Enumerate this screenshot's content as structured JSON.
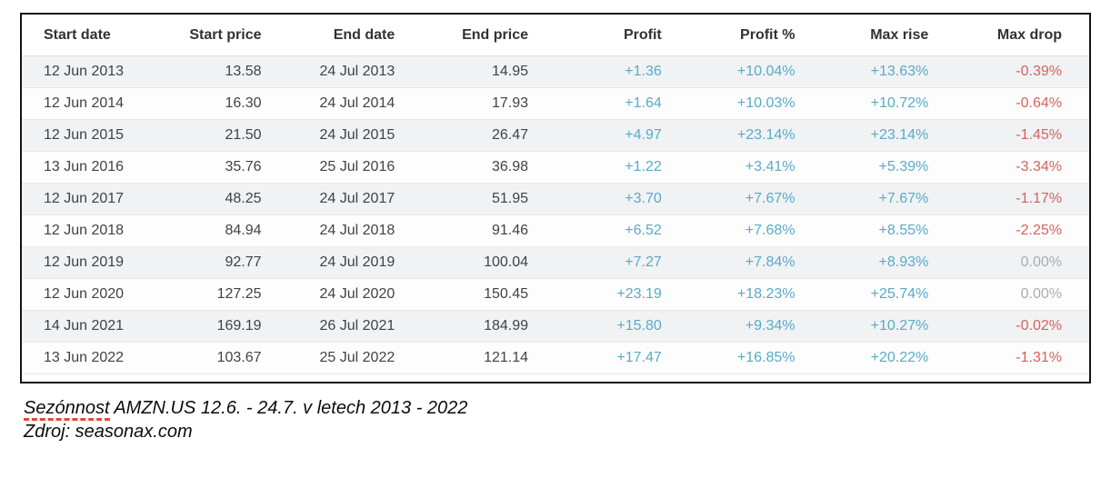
{
  "colors": {
    "positive": "#5aabc4",
    "negative": "#d4635f",
    "neutral": "#a9adb2"
  },
  "chart_data": {
    "type": "table",
    "title": "Sezónnost AMZN.US 12.6. - 24.7. v letech 2013 - 2022",
    "source": "Zdroj: seasonax.com",
    "columns": [
      "Start date",
      "Start price",
      "End date",
      "End price",
      "Profit",
      "Profit %",
      "Max rise",
      "Max drop"
    ],
    "column_keys": [
      "start-date",
      "start-price",
      "end-date",
      "end-price",
      "profit",
      "profit-pct",
      "max-rise",
      "max-drop"
    ],
    "rows": [
      [
        "12 Jun 2013",
        "13.58",
        "24 Jul 2013",
        "14.95",
        "+1.36",
        "+10.04%",
        "+13.63%",
        "-0.39%"
      ],
      [
        "12 Jun 2014",
        "16.30",
        "24 Jul 2014",
        "17.93",
        "+1.64",
        "+10.03%",
        "+10.72%",
        "-0.64%"
      ],
      [
        "12 Jun 2015",
        "21.50",
        "24 Jul 2015",
        "26.47",
        "+4.97",
        "+23.14%",
        "+23.14%",
        "-1.45%"
      ],
      [
        "13 Jun 2016",
        "35.76",
        "25 Jul 2016",
        "36.98",
        "+1.22",
        "+3.41%",
        "+5.39%",
        "-3.34%"
      ],
      [
        "12 Jun 2017",
        "48.25",
        "24 Jul 2017",
        "51.95",
        "+3.70",
        "+7.67%",
        "+7.67%",
        "-1.17%"
      ],
      [
        "12 Jun 2018",
        "84.94",
        "24 Jul 2018",
        "91.46",
        "+6.52",
        "+7.68%",
        "+8.55%",
        "-2.25%"
      ],
      [
        "12 Jun 2019",
        "92.77",
        "24 Jul 2019",
        "100.04",
        "+7.27",
        "+7.84%",
        "+8.93%",
        "0.00%"
      ],
      [
        "12 Jun 2020",
        "127.25",
        "24 Jul 2020",
        "150.45",
        "+23.19",
        "+18.23%",
        "+25.74%",
        "0.00%"
      ],
      [
        "14 Jun 2021",
        "169.19",
        "26 Jul 2021",
        "184.99",
        "+15.80",
        "+9.34%",
        "+10.27%",
        "-0.02%"
      ],
      [
        "13 Jun 2022",
        "103.67",
        "25 Jul 2022",
        "121.14",
        "+17.47",
        "+16.85%",
        "+20.22%",
        "-1.31%"
      ]
    ]
  },
  "caption": {
    "highlight": "Sezónnost",
    "rest": " AMZN.US 12.6. - 24.7. v letech 2013 - 2022",
    "source": "Zdroj: seasonax.com"
  }
}
